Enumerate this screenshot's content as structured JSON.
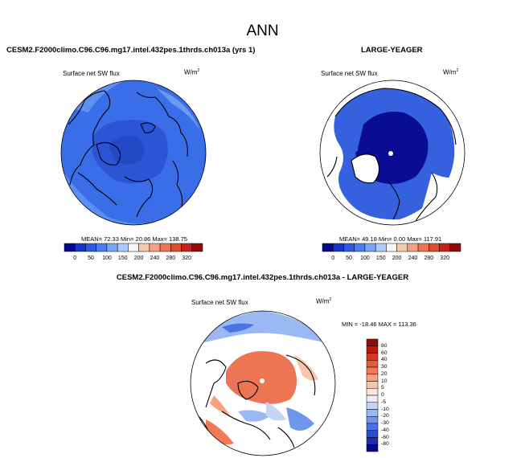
{
  "figure": {
    "title": "ANN"
  },
  "panels": [
    {
      "id": "test",
      "case_title": "CESM2.F2000climo.C96.C96.mg17.intel.432pes.1thrds.ch013a (yrs 1)",
      "variable": "Surface net SW flux",
      "units": "W/m",
      "units_sup": "2",
      "stats": "MEAN=  72.33  Min=  20.86  Max= 138.75"
    },
    {
      "id": "obs",
      "case_title": "LARGE-YEAGER",
      "variable": "Surface net SW flux",
      "units": "W/m",
      "units_sup": "2",
      "stats": "MEAN=  49.18  Min=   0.00  Max= 117.91"
    },
    {
      "id": "diff",
      "case_title": "CESM2.F2000climo.C96.C96.mg17.intel.432pes.1thrds.ch013a - LARGE-YEAGER",
      "variable": "Surface net SW flux",
      "units": "W/m",
      "units_sup": "2",
      "stats": "MIN = -18.46  MAX = 113.36"
    }
  ],
  "colorbar_main": {
    "labels": [
      "0",
      "50",
      "100",
      "150",
      "200",
      "240",
      "280",
      "320"
    ],
    "colors": [
      "#08088a",
      "#1a33c4",
      "#2f5ae0",
      "#4a7ff0",
      "#7aa4f5",
      "#b0c8f8",
      "#f6f6f6",
      "#f5c8b0",
      "#f3a182",
      "#ec7553",
      "#de4a2c",
      "#c42417",
      "#8f0c0c"
    ]
  },
  "colorbar_diff": {
    "labels": [
      "80",
      "60",
      "40",
      "30",
      "20",
      "10",
      "5",
      "0",
      "-5",
      "-10",
      "-20",
      "-30",
      "-40",
      "-60",
      "-80"
    ],
    "colors": [
      "#8f0c0c",
      "#b81a12",
      "#d6361f",
      "#e7583a",
      "#f07a58",
      "#f5a07e",
      "#f8c6ad",
      "#fbe6da",
      "#e8eefa",
      "#c4d5f6",
      "#9ab8f3",
      "#6f96ec",
      "#4a74e2",
      "#2a4ecb",
      "#1a2fa6",
      "#08088a"
    ]
  },
  "chart_data": {
    "type": "heatmap",
    "title": "ANN",
    "maps": [
      {
        "name": "CESM2.F2000climo.C96.C96.mg17.intel.432pes.1thrds.ch013a (yrs 1)",
        "variable": "Surface net SW flux",
        "units": "W/m2",
        "mean": 72.33,
        "min": 20.86,
        "max": 138.75,
        "levels": [
          0,
          25,
          50,
          75,
          100,
          125,
          150,
          175,
          200,
          220,
          240,
          260,
          280,
          300,
          320
        ]
      },
      {
        "name": "LARGE-YEAGER",
        "variable": "Surface net SW flux",
        "units": "W/m2",
        "mean": 49.18,
        "min": 0.0,
        "max": 117.91,
        "levels": [
          0,
          25,
          50,
          75,
          100,
          125,
          150,
          175,
          200,
          220,
          240,
          260,
          280,
          300,
          320
        ]
      },
      {
        "name": "CESM2.F2000climo.C96.C96.mg17.intel.432pes.1thrds.ch013a - LARGE-YEAGER",
        "variable": "Surface net SW flux",
        "units": "W/m2",
        "min": -18.46,
        "max": 113.36,
        "levels": [
          -80,
          -60,
          -40,
          -30,
          -20,
          -10,
          -5,
          0,
          5,
          10,
          20,
          30,
          40,
          60,
          80
        ]
      }
    ]
  }
}
